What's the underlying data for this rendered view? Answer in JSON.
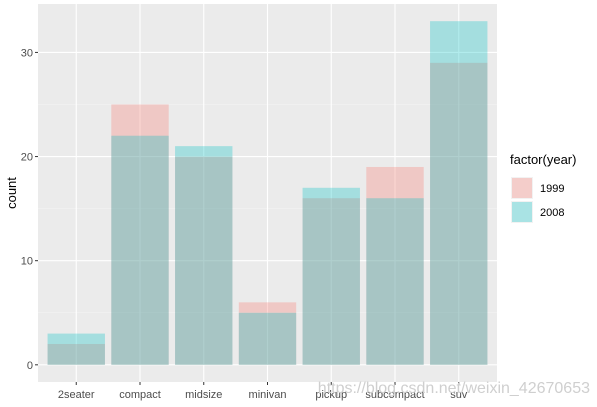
{
  "chart_data": {
    "type": "bar",
    "categories": [
      "2seater",
      "compact",
      "midsize",
      "minivan",
      "pickup",
      "subcompact",
      "suv"
    ],
    "series": [
      {
        "name": "1999",
        "values": [
          2,
          25,
          20,
          6,
          16,
          19,
          29
        ],
        "color": "#F8766D"
      },
      {
        "name": "2008",
        "values": [
          3,
          22,
          21,
          5,
          17,
          16,
          33
        ],
        "color": "#00BFC4"
      }
    ],
    "position": "identity",
    "alpha": 0.3,
    "ylabel": "count",
    "ylim": [
      -1.65,
      34.65
    ],
    "yticks": [
      0,
      10,
      20,
      30
    ],
    "grid": true,
    "panel_background": "#EBEBEB",
    "legend": {
      "title": "factor(year)",
      "placement": "right",
      "entries": [
        "1999",
        "2008"
      ]
    }
  },
  "watermark": "https://blog.csdn.net/weixin_42670653"
}
